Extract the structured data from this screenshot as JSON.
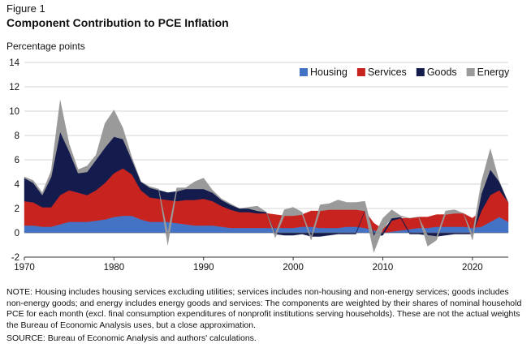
{
  "figure_label": "Figure 1",
  "title": "Component Contribution to PCE Inflation",
  "y_unit_label": "Percentage points",
  "note": "NOTE: Housing includes housing services excluding utilities; services includes non-housing and non-energy services; goods includes non-energy goods; and energy includes energy goods and services: The components are weighted by their shares of nominal household PCE for each month (excl. final consumption expenditures of nonprofit institutions serving households). These are not the actual weights the Bureau of Economic Analysis uses, but a close approximation.",
  "source": "SOURCE: Bureau of Economic Analysis and authors' calculations.",
  "colors": {
    "housing": "#4472c4",
    "services": "#c8241f",
    "goods": "#141b4d",
    "energy": "#9a9a9a"
  },
  "chart_data": {
    "type": "area",
    "stacked": true,
    "x_unit": "year",
    "x_ticks": [
      1970,
      1980,
      1990,
      2000,
      2010,
      2020
    ],
    "y_ticks": [
      -2,
      0,
      2,
      4,
      6,
      8,
      10,
      12,
      14
    ],
    "ylim": [
      -2,
      14
    ],
    "xlim": [
      1970,
      2024
    ],
    "grid": true,
    "legend_position": "top-right",
    "series": [
      {
        "name": "Housing",
        "key": "housing",
        "x": [
          1970,
          1971,
          1972,
          1973,
          1974,
          1975,
          1976,
          1977,
          1978,
          1979,
          1980,
          1981,
          1982,
          1983,
          1984,
          1985,
          1986,
          1987,
          1988,
          1989,
          1990,
          1991,
          1992,
          1993,
          1994,
          1995,
          1996,
          1997,
          1998,
          1999,
          2000,
          2001,
          2002,
          2003,
          2004,
          2005,
          2006,
          2007,
          2008,
          2009,
          2010,
          2011,
          2012,
          2013,
          2014,
          2015,
          2016,
          2017,
          2018,
          2019,
          2020,
          2021,
          2022,
          2023,
          2024
        ],
        "values": [
          0.6,
          0.6,
          0.5,
          0.5,
          0.7,
          0.9,
          0.9,
          0.9,
          1.0,
          1.1,
          1.3,
          1.4,
          1.4,
          1.1,
          0.9,
          0.9,
          0.9,
          0.8,
          0.7,
          0.6,
          0.6,
          0.6,
          0.5,
          0.4,
          0.4,
          0.4,
          0.4,
          0.4,
          0.4,
          0.4,
          0.4,
          0.5,
          0.5,
          0.4,
          0.4,
          0.4,
          0.5,
          0.5,
          0.4,
          0.2,
          0.0,
          0.1,
          0.2,
          0.3,
          0.4,
          0.4,
          0.5,
          0.5,
          0.5,
          0.5,
          0.4,
          0.5,
          0.9,
          1.3,
          0.9
        ]
      },
      {
        "name": "Services",
        "key": "services",
        "x": [
          1970,
          1971,
          1972,
          1973,
          1974,
          1975,
          1976,
          1977,
          1978,
          1979,
          1980,
          1981,
          1982,
          1983,
          1984,
          1985,
          1986,
          1987,
          1988,
          1989,
          1990,
          1991,
          1992,
          1993,
          1994,
          1995,
          1996,
          1997,
          1998,
          1999,
          2000,
          2001,
          2002,
          2003,
          2004,
          2005,
          2006,
          2007,
          2008,
          2009,
          2010,
          2011,
          2012,
          2013,
          2014,
          2015,
          2016,
          2017,
          2018,
          2019,
          2020,
          2021,
          2022,
          2023,
          2024
        ],
        "values": [
          2.0,
          1.9,
          1.6,
          1.6,
          2.4,
          2.6,
          2.4,
          2.2,
          2.5,
          3.0,
          3.6,
          3.9,
          3.4,
          2.4,
          2.0,
          1.9,
          1.8,
          1.8,
          2.0,
          2.1,
          2.2,
          2.0,
          1.7,
          1.5,
          1.3,
          1.3,
          1.2,
          1.2,
          1.1,
          1.0,
          1.0,
          1.0,
          1.3,
          1.4,
          1.5,
          1.5,
          1.4,
          1.4,
          1.4,
          0.6,
          0.3,
          0.9,
          1.0,
          0.9,
          0.9,
          0.9,
          1.0,
          1.0,
          1.1,
          1.1,
          0.8,
          1.3,
          2.2,
          2.2,
          1.6
        ]
      },
      {
        "name": "Goods",
        "key": "goods",
        "x": [
          1970,
          1971,
          1972,
          1973,
          1974,
          1975,
          1976,
          1977,
          1978,
          1979,
          1980,
          1981,
          1982,
          1983,
          1984,
          1985,
          1986,
          1987,
          1988,
          1989,
          1990,
          1991,
          1992,
          1993,
          1994,
          1995,
          1996,
          1997,
          1998,
          1999,
          2000,
          2001,
          2002,
          2003,
          2004,
          2005,
          2006,
          2007,
          2008,
          2009,
          2010,
          2011,
          2012,
          2013,
          2014,
          2015,
          2016,
          2017,
          2018,
          2019,
          2020,
          2021,
          2022,
          2023,
          2024
        ],
        "values": [
          1.9,
          1.6,
          1.0,
          2.5,
          5.2,
          3.2,
          1.6,
          1.9,
          2.5,
          2.9,
          3.0,
          2.4,
          1.2,
          0.7,
          0.8,
          0.7,
          0.6,
          0.8,
          0.9,
          0.9,
          0.8,
          0.7,
          0.5,
          0.4,
          0.3,
          0.3,
          0.2,
          0.1,
          -0.1,
          -0.2,
          -0.2,
          -0.1,
          -0.3,
          -0.3,
          -0.2,
          -0.1,
          -0.1,
          -0.1,
          0.0,
          -0.3,
          -0.2,
          0.2,
          0.1,
          -0.1,
          -0.1,
          -0.2,
          -0.3,
          -0.2,
          -0.1,
          -0.1,
          -0.1,
          1.4,
          2.1,
          0.7,
          0.0
        ]
      },
      {
        "name": "Energy",
        "key": "energy",
        "x": [
          1970,
          1971,
          1972,
          1973,
          1974,
          1975,
          1976,
          1977,
          1978,
          1979,
          1980,
          1981,
          1982,
          1983,
          1984,
          1985,
          1986,
          1987,
          1988,
          1989,
          1990,
          1991,
          1992,
          1993,
          1994,
          1995,
          1996,
          1997,
          1998,
          1999,
          2000,
          2001,
          2002,
          2003,
          2004,
          2005,
          2006,
          2007,
          2008,
          2009,
          2010,
          2011,
          2012,
          2013,
          2014,
          2015,
          2016,
          2017,
          2018,
          2019,
          2020,
          2021,
          2022,
          2023,
          2024
        ],
        "values": [
          0.1,
          0.2,
          0.2,
          0.5,
          2.6,
          0.6,
          0.3,
          0.5,
          0.4,
          2.0,
          2.2,
          0.9,
          0.2,
          0.0,
          0.1,
          0.1,
          -1.0,
          0.3,
          0.1,
          0.6,
          0.9,
          0.2,
          0.1,
          0.1,
          0.0,
          0.1,
          0.4,
          0.0,
          -0.3,
          0.5,
          0.7,
          0.2,
          -0.3,
          0.5,
          0.5,
          0.8,
          0.6,
          0.6,
          0.8,
          -1.3,
          0.9,
          0.7,
          0.1,
          0.0,
          0.0,
          -0.9,
          -0.3,
          0.3,
          0.3,
          0.0,
          -0.5,
          1.0,
          1.7,
          0.0,
          0.0
        ]
      }
    ]
  }
}
